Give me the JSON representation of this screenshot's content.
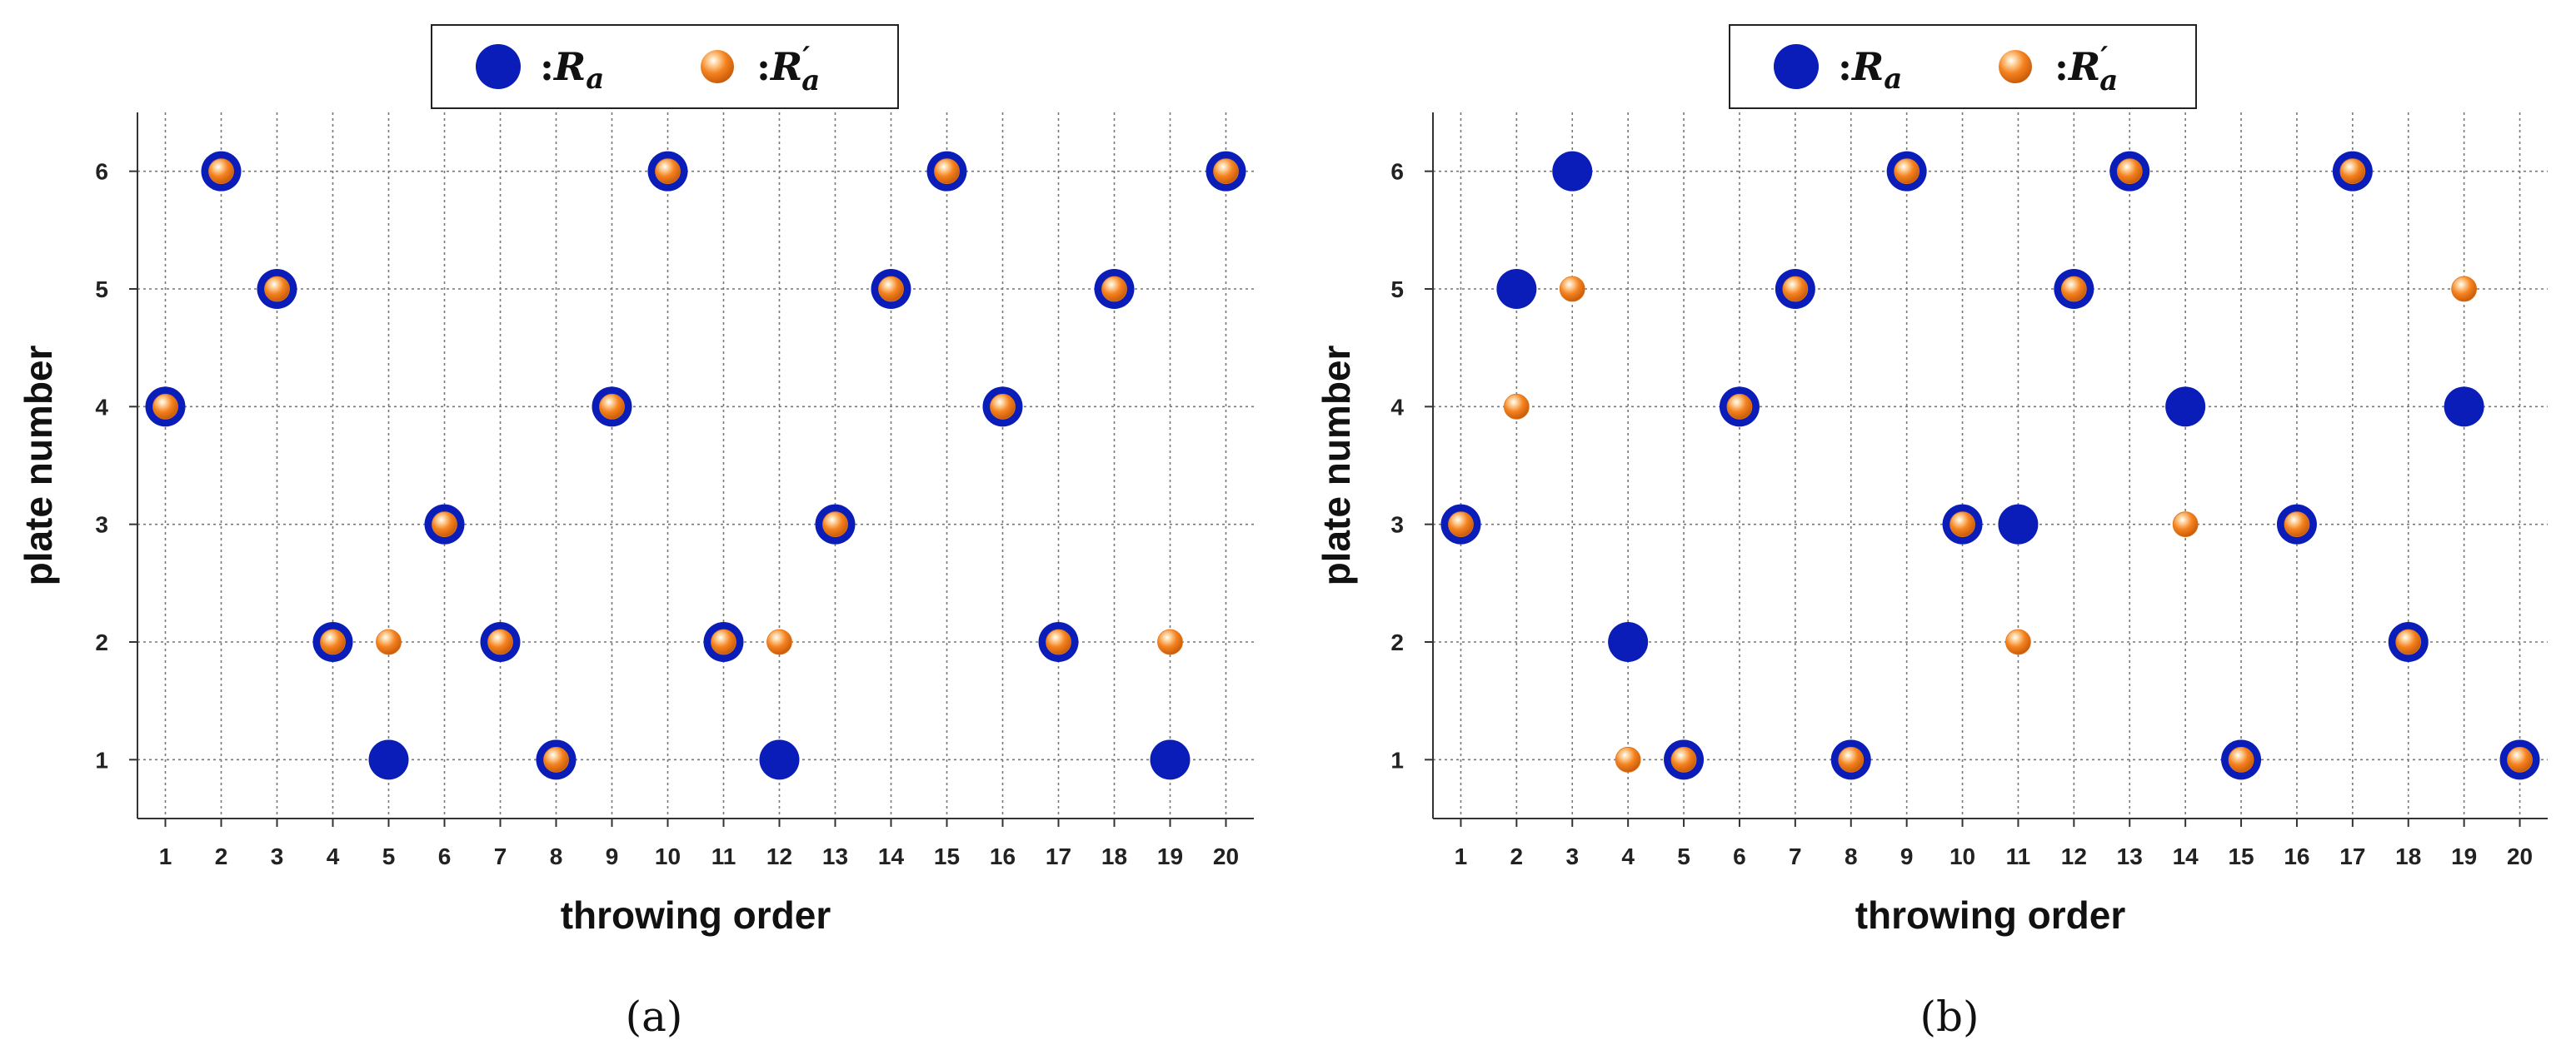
{
  "chart_data": [
    {
      "type": "scatter",
      "panel_label": "(a)",
      "xlabel": "throwing order",
      "ylabel": "plate number",
      "x_ticks": [
        1,
        2,
        3,
        4,
        5,
        6,
        7,
        8,
        9,
        10,
        11,
        12,
        13,
        14,
        15,
        16,
        17,
        18,
        19,
        20
      ],
      "y_ticks": [
        1,
        2,
        3,
        4,
        5,
        6
      ],
      "xlim": [
        0.5,
        20.5
      ],
      "ylim": [
        0.5,
        6.5
      ],
      "grid": true,
      "legend_position": "top-center",
      "legend": {
        "colon": ":",
        "ra_symbol": "R",
        "ra_sub": "a",
        "rpa_symbol": "R",
        "rpa_prime": "′",
        "rpa_sub": "a"
      },
      "series": [
        {
          "name": "Ra",
          "color": "#0b1db8",
          "x": [
            1,
            2,
            3,
            4,
            5,
            6,
            7,
            8,
            9,
            10,
            11,
            12,
            13,
            14,
            15,
            16,
            17,
            18,
            19,
            20
          ],
          "y": [
            4,
            6,
            5,
            2,
            1,
            3,
            2,
            1,
            4,
            6,
            2,
            1,
            3,
            5,
            6,
            4,
            2,
            5,
            1,
            6
          ]
        },
        {
          "name": "R'a",
          "color": "#f5821f",
          "x": [
            1,
            2,
            3,
            4,
            5,
            6,
            7,
            8,
            9,
            10,
            11,
            12,
            13,
            14,
            15,
            16,
            17,
            18,
            19,
            20
          ],
          "y": [
            4,
            6,
            5,
            2,
            2,
            3,
            2,
            1,
            4,
            6,
            2,
            2,
            3,
            5,
            6,
            4,
            2,
            5,
            2,
            6
          ]
        }
      ]
    },
    {
      "type": "scatter",
      "panel_label": "(b)",
      "xlabel": "throwing order",
      "ylabel": "plate number",
      "x_ticks": [
        1,
        2,
        3,
        4,
        5,
        6,
        7,
        8,
        9,
        10,
        11,
        12,
        13,
        14,
        15,
        16,
        17,
        18,
        19,
        20
      ],
      "y_ticks": [
        1,
        2,
        3,
        4,
        5,
        6
      ],
      "xlim": [
        0.5,
        20.5
      ],
      "ylim": [
        0.5,
        6.5
      ],
      "grid": true,
      "legend_position": "top-center",
      "legend": {
        "colon": ":",
        "ra_symbol": "R",
        "ra_sub": "a",
        "rpa_symbol": "R",
        "rpa_prime": "′",
        "rpa_sub": "a"
      },
      "series": [
        {
          "name": "Ra",
          "color": "#0b1db8",
          "x": [
            1,
            2,
            3,
            4,
            5,
            6,
            7,
            8,
            9,
            10,
            11,
            12,
            13,
            14,
            15,
            16,
            17,
            18,
            19,
            20
          ],
          "y": [
            3,
            5,
            6,
            2,
            1,
            4,
            5,
            1,
            6,
            3,
            3,
            5,
            6,
            4,
            1,
            3,
            6,
            2,
            4,
            1
          ]
        },
        {
          "name": "R'a",
          "color": "#f5821f",
          "x": [
            1,
            2,
            3,
            4,
            5,
            6,
            7,
            8,
            9,
            10,
            11,
            12,
            13,
            14,
            15,
            16,
            17,
            18,
            19,
            20
          ],
          "y": [
            3,
            4,
            5,
            1,
            1,
            4,
            5,
            1,
            6,
            3,
            2,
            5,
            6,
            3,
            1,
            3,
            6,
            2,
            5,
            1
          ]
        }
      ]
    }
  ]
}
